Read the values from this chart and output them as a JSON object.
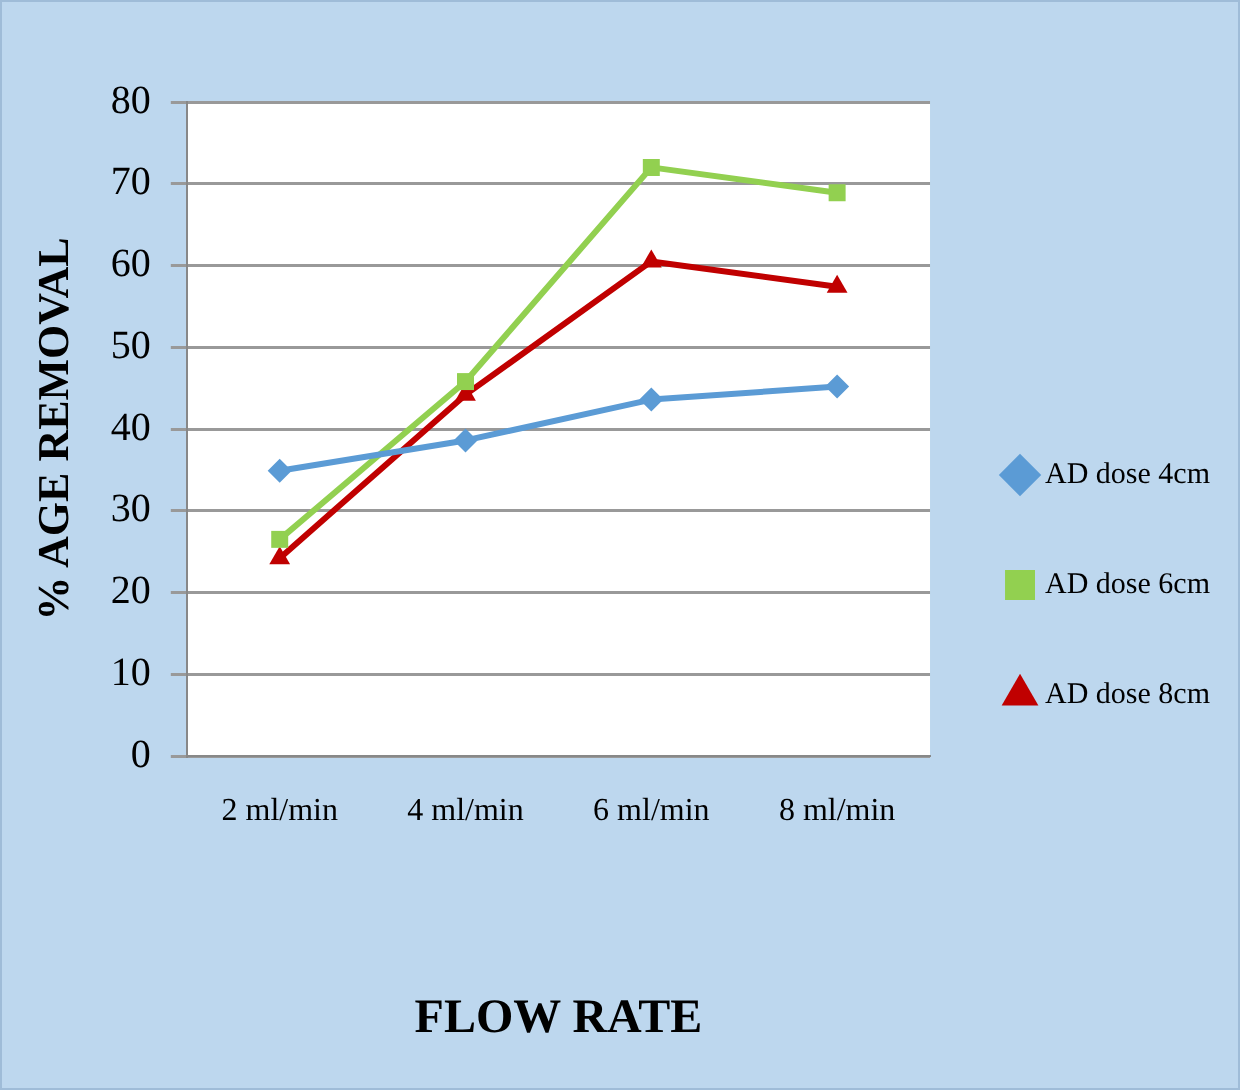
{
  "chart_data": {
    "type": "line",
    "xlabel": "FLOW RATE",
    "ylabel": "% AGE REMOVAL",
    "categories": [
      "2 ml/min",
      "4 ml/min",
      "6 ml/min",
      "8 ml/min"
    ],
    "ylim": [
      0,
      80
    ],
    "yticks": [
      0,
      10,
      20,
      30,
      40,
      50,
      60,
      70,
      80
    ],
    "grid": "y",
    "legend": "right",
    "series": [
      {
        "name": "AD dose 4cm",
        "color": "#5b9bd5",
        "marker": "diamond",
        "values": [
          34.9,
          38.6,
          43.6,
          45.2
        ]
      },
      {
        "name": "AD dose 6cm",
        "color": "#92d050",
        "marker": "square",
        "values": [
          26.5,
          45.8,
          72,
          68.9
        ]
      },
      {
        "name": "AD dose 8cm",
        "color": "#c00000",
        "marker": "triangle",
        "values": [
          24.2,
          44.2,
          60.5,
          57.4
        ]
      }
    ]
  }
}
